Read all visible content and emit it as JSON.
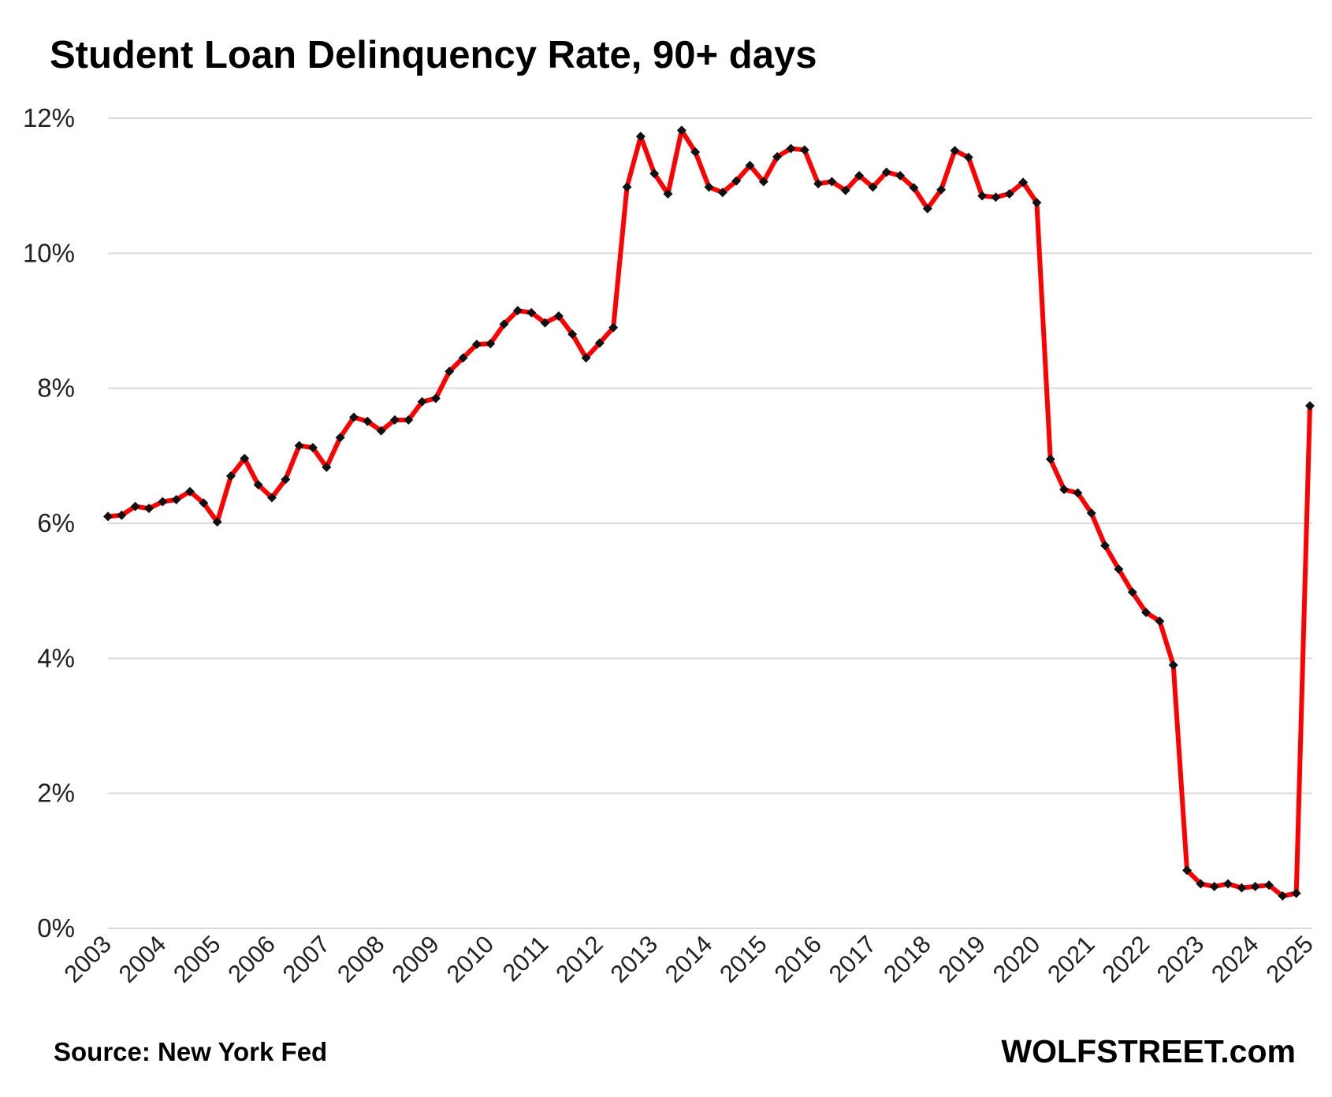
{
  "title": "Student Loan Delinquency Rate, 90+ days",
  "footer": {
    "source": "Source: New York Fed",
    "brand": "WOLFSTREET.com"
  },
  "colors": {
    "line": "#ff0000",
    "marker": "#111111",
    "grid": "#d9d9d9"
  },
  "chart_data": {
    "type": "line",
    "title": "Student Loan Delinquency Rate, 90+ days",
    "xlabel": "",
    "ylabel": "",
    "ylim": [
      0,
      12
    ],
    "yticks": [
      0,
      2,
      4,
      6,
      8,
      10,
      12
    ],
    "ytick_labels": [
      "0%",
      "2%",
      "4%",
      "6%",
      "8%",
      "10%",
      "12%"
    ],
    "xticks": [
      "2003",
      "2004",
      "2005",
      "2006",
      "2007",
      "2008",
      "2009",
      "2010",
      "2011",
      "2012",
      "2013",
      "2014",
      "2015",
      "2016",
      "2017",
      "2018",
      "2019",
      "2020",
      "2021",
      "2022",
      "2023",
      "2024",
      "2025"
    ],
    "grid": true,
    "legend": "none",
    "series": [
      {
        "marker": "diamond",
        "x": [
          "2003 Q1",
          "2003 Q2",
          "2003 Q3",
          "2003 Q4",
          "2004 Q1",
          "2004 Q2",
          "2004 Q3",
          "2004 Q4",
          "2005 Q1",
          "2005 Q2",
          "2005 Q3",
          "2005 Q4",
          "2006 Q1",
          "2006 Q2",
          "2006 Q3",
          "2006 Q4",
          "2007 Q1",
          "2007 Q2",
          "2007 Q3",
          "2007 Q4",
          "2008 Q1",
          "2008 Q2",
          "2008 Q3",
          "2008 Q4",
          "2009 Q1",
          "2009 Q2",
          "2009 Q3",
          "2009 Q4",
          "2010 Q1",
          "2010 Q2",
          "2010 Q3",
          "2010 Q4",
          "2011 Q1",
          "2011 Q2",
          "2011 Q3",
          "2011 Q4",
          "2012 Q1",
          "2012 Q2",
          "2012 Q3",
          "2012 Q4",
          "2013 Q1",
          "2013 Q2",
          "2013 Q3",
          "2013 Q4",
          "2014 Q1",
          "2014 Q2",
          "2014 Q3",
          "2014 Q4",
          "2015 Q1",
          "2015 Q2",
          "2015 Q3",
          "2015 Q4",
          "2016 Q1",
          "2016 Q2",
          "2016 Q3",
          "2016 Q4",
          "2017 Q1",
          "2017 Q2",
          "2017 Q3",
          "2017 Q4",
          "2018 Q1",
          "2018 Q2",
          "2018 Q3",
          "2018 Q4",
          "2019 Q1",
          "2019 Q2",
          "2019 Q3",
          "2019 Q4",
          "2020 Q1",
          "2020 Q2",
          "2020 Q3",
          "2020 Q4",
          "2021 Q1",
          "2021 Q2",
          "2021 Q3",
          "2021 Q4",
          "2022 Q1",
          "2022 Q2",
          "2022 Q3",
          "2022 Q4",
          "2023 Q1",
          "2023 Q2",
          "2023 Q3",
          "2023 Q4",
          "2024 Q1",
          "2024 Q2",
          "2024 Q3",
          "2024 Q4",
          "2025 Q1"
        ],
        "values": [
          6.1,
          6.12,
          6.25,
          6.22,
          6.32,
          6.35,
          6.47,
          6.3,
          6.02,
          6.7,
          6.96,
          6.57,
          6.38,
          6.65,
          7.15,
          7.12,
          6.83,
          7.27,
          7.57,
          7.51,
          7.37,
          7.53,
          7.53,
          7.8,
          7.85,
          8.25,
          8.45,
          8.65,
          8.66,
          8.95,
          9.15,
          9.12,
          8.97,
          9.07,
          8.8,
          8.45,
          8.67,
          8.9,
          10.98,
          11.73,
          11.18,
          10.88,
          11.82,
          11.5,
          10.98,
          10.9,
          11.07,
          11.3,
          11.06,
          11.43,
          11.55,
          11.53,
          11.03,
          11.06,
          10.93,
          11.15,
          10.98,
          11.2,
          11.15,
          10.97,
          10.66,
          10.94,
          11.52,
          11.42,
          10.85,
          10.83,
          10.88,
          11.05,
          10.75,
          6.95,
          6.5,
          6.45,
          6.15,
          5.67,
          5.32,
          4.98,
          4.68,
          4.55,
          3.9,
          0.86,
          0.66,
          0.62,
          0.66,
          0.6,
          0.62,
          0.64,
          0.48,
          0.52,
          7.74
        ]
      }
    ]
  }
}
